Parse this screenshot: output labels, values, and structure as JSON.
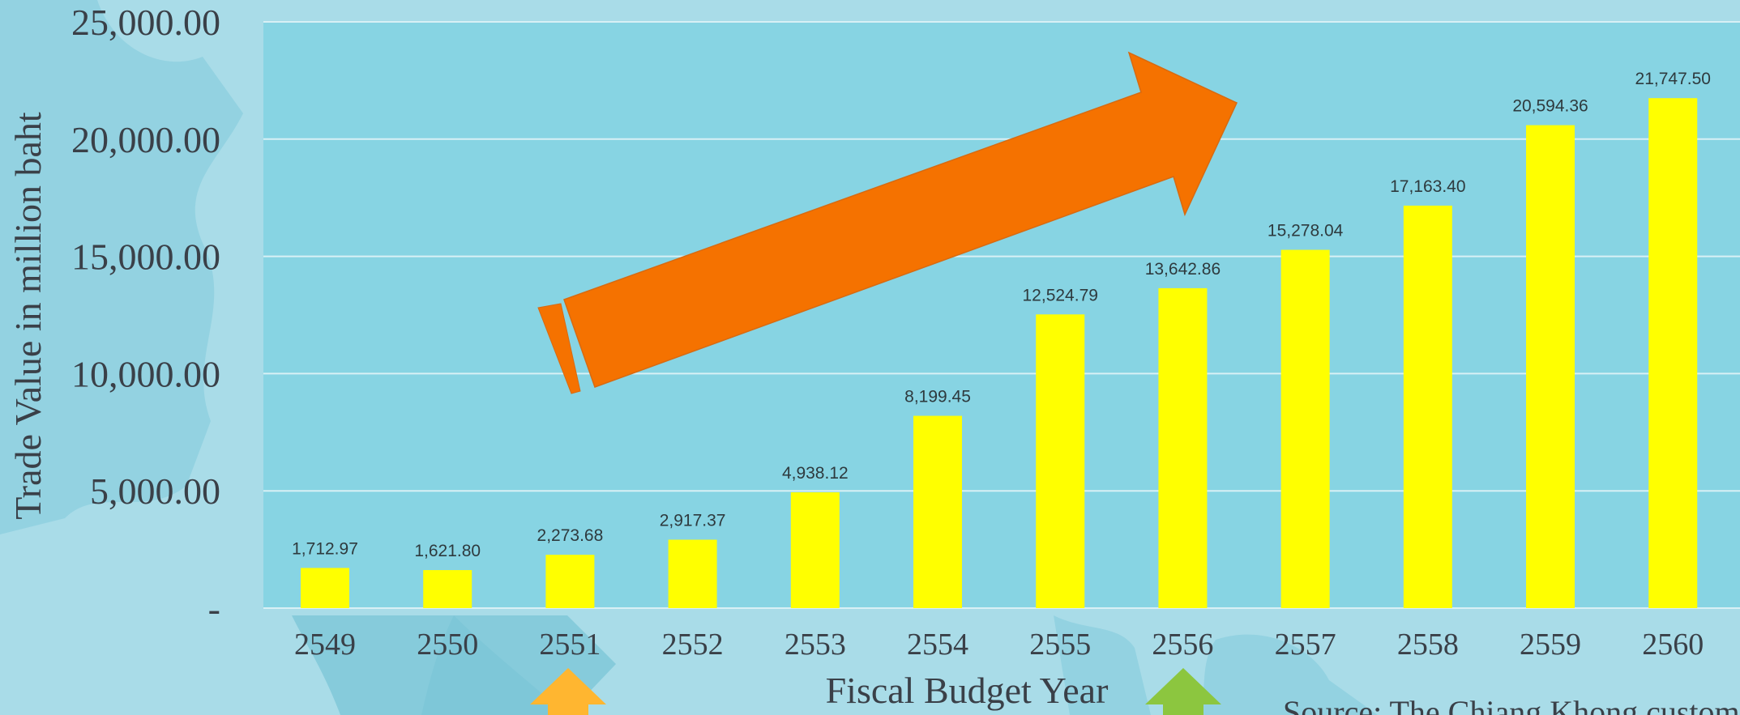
{
  "chart_data": {
    "type": "bar",
    "title": "",
    "xlabel": "Fiscal Budget Year",
    "ylabel": "Trade Value in million baht",
    "categories": [
      "2549",
      "2550",
      "2551",
      "2552",
      "2553",
      "2554",
      "2555",
      "2556",
      "2557",
      "2558",
      "2559",
      "2560"
    ],
    "series": [
      {
        "values": [
          1712.97,
          1621.8,
          2273.68,
          2917.37,
          4938.12,
          8199.45,
          12524.79,
          13642.86,
          15278.04,
          17163.4,
          20594.36,
          21747.5
        ],
        "labels": [
          "1,712.97",
          "1,621.80",
          "2,273.68",
          "2,917.37",
          "4,938.12",
          "8,199.45",
          "12,524.79",
          "13,642.86",
          "15,278.04",
          "17,163.40",
          "20,594.36",
          "21,747.50"
        ],
        "color": "#ffff00"
      }
    ],
    "ylim": [
      0,
      25000
    ],
    "yticks": [
      0,
      5000,
      10000,
      15000,
      20000,
      25000
    ],
    "ytick_labels": [
      "-",
      "5,000.00",
      "10,000.00",
      "15,000.00",
      "20,000.00",
      "25,000.00"
    ],
    "grid": true,
    "legend": "none",
    "source_note": "Source: The Chiang Khong customs",
    "colors": {
      "plot_background": "#87d4e3",
      "page_background": "#a9dce8",
      "gridline": "#d8f0f5",
      "bar": "#ffff00",
      "trend_arrow": "#f57200",
      "marker_arrow_2551": "#ffb630",
      "marker_arrow_2556": "#8cc63f"
    }
  }
}
